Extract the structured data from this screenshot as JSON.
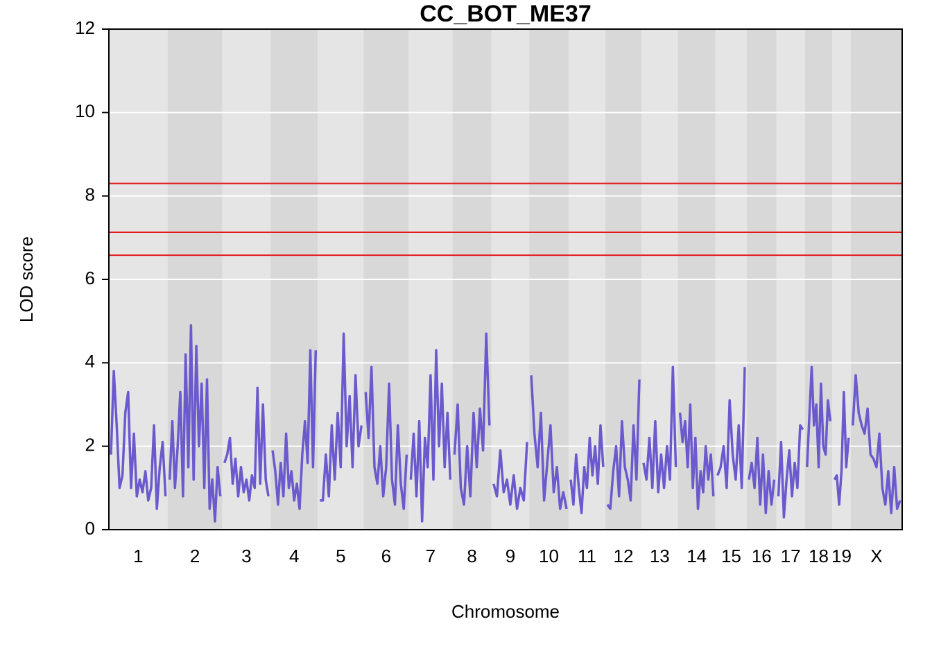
{
  "chart_data": {
    "type": "line",
    "title": "CC_BOT_ME37",
    "xlabel": "Chromosome",
    "ylabel": "LOD score",
    "color": "#6a5acd",
    "ylim": [
      0,
      12
    ],
    "yticks": [
      0,
      2,
      4,
      6,
      8,
      10,
      12
    ],
    "grid": true,
    "thresholds": {
      "values": [
        8.3,
        7.13,
        6.58
      ],
      "color": "#e41a1c"
    },
    "chromosomes": [
      {
        "label": "1",
        "length": 195,
        "values": [
          1.8,
          3.8,
          2.5,
          1.0,
          1.3,
          2.8,
          3.3,
          1.0,
          2.3,
          0.8,
          1.2,
          0.9,
          1.4,
          0.7,
          1.0,
          2.5,
          0.5,
          1.5,
          2.1,
          0.8
        ]
      },
      {
        "label": "2",
        "length": 182,
        "values": [
          1.2,
          2.6,
          1.0,
          2.0,
          3.3,
          0.8,
          4.2,
          1.5,
          4.9,
          1.2,
          4.4,
          2.0,
          3.5,
          1.0,
          3.6,
          0.5,
          1.2,
          0.2,
          1.5,
          0.8
        ]
      },
      {
        "label": "3",
        "length": 160,
        "values": [
          1.6,
          1.8,
          2.2,
          1.1,
          1.7,
          0.8,
          1.5,
          0.9,
          1.2,
          0.7,
          1.3,
          1.0,
          3.4,
          1.1,
          3.0,
          1.2,
          0.8
        ]
      },
      {
        "label": "4",
        "length": 157,
        "values": [
          1.9,
          1.4,
          0.6,
          1.6,
          0.8,
          2.3,
          1.0,
          1.4,
          0.7,
          1.1,
          0.5,
          1.8,
          2.6,
          1.6,
          4.3,
          1.5,
          4.3
        ]
      },
      {
        "label": "5",
        "length": 152,
        "values": [
          0.7,
          0.7,
          1.8,
          0.8,
          2.5,
          1.2,
          2.8,
          1.5,
          4.7,
          2.0,
          3.2,
          1.5,
          3.7,
          2.0,
          2.5
        ]
      },
      {
        "label": "6",
        "length": 150,
        "values": [
          3.3,
          2.2,
          3.9,
          1.5,
          1.1,
          2.0,
          0.8,
          1.5,
          3.5,
          1.2,
          0.6,
          2.5,
          1.1,
          0.5,
          1.8
        ]
      },
      {
        "label": "7",
        "length": 145,
        "values": [
          1.2,
          2.3,
          0.8,
          2.6,
          0.2,
          2.2,
          1.5,
          3.7,
          1.2,
          4.3,
          2.0,
          3.5,
          1.5,
          2.8,
          1.2
        ]
      },
      {
        "label": "8",
        "length": 130,
        "values": [
          1.8,
          3.0,
          1.0,
          0.6,
          2.0,
          0.8,
          2.8,
          1.5,
          2.9,
          1.9,
          4.7,
          2.5
        ]
      },
      {
        "label": "9",
        "length": 125,
        "values": [
          1.1,
          0.8,
          1.9,
          0.9,
          1.2,
          0.6,
          1.3,
          0.5,
          1.0,
          0.7,
          2.1
        ]
      },
      {
        "label": "10",
        "length": 131,
        "values": [
          3.7,
          2.3,
          1.5,
          2.8,
          0.7,
          1.6,
          2.5,
          0.9,
          1.5,
          0.5,
          0.9,
          0.5
        ]
      },
      {
        "label": "11",
        "length": 122,
        "values": [
          1.2,
          0.6,
          1.8,
          1.0,
          0.4,
          1.5,
          1.0,
          2.2,
          1.3,
          2.0,
          1.1,
          2.5,
          1.5
        ]
      },
      {
        "label": "12",
        "length": 120,
        "values": [
          0.6,
          0.5,
          1.4,
          2.0,
          0.8,
          2.6,
          1.5,
          1.2,
          0.7,
          2.5,
          1.2,
          3.6
        ]
      },
      {
        "label": "13",
        "length": 121,
        "values": [
          1.6,
          1.2,
          2.2,
          1.0,
          2.6,
          0.9,
          1.8,
          1.0,
          2.0,
          1.2,
          3.9,
          1.5
        ]
      },
      {
        "label": "14",
        "length": 125,
        "values": [
          2.8,
          2.1,
          2.6,
          1.5,
          3.0,
          1.0,
          2.2,
          0.5,
          1.4,
          0.9,
          2.0,
          1.2,
          1.8,
          0.8
        ]
      },
      {
        "label": "15",
        "length": 104,
        "values": [
          1.3,
          1.5,
          2.0,
          1.0,
          3.1,
          1.8,
          1.2,
          2.5,
          1.0,
          3.9
        ]
      },
      {
        "label": "16",
        "length": 98,
        "values": [
          1.2,
          1.6,
          1.0,
          2.2,
          0.6,
          1.8,
          0.4,
          1.4,
          0.6,
          1.2
        ]
      },
      {
        "label": "17",
        "length": 95,
        "values": [
          0.8,
          2.1,
          0.3,
          1.2,
          1.9,
          0.8,
          1.6,
          1.0,
          2.5,
          2.4
        ]
      },
      {
        "label": "18",
        "length": 91,
        "values": [
          1.5,
          2.7,
          3.9,
          2.5,
          3.0,
          1.5,
          3.5,
          2.0,
          1.8,
          3.1,
          2.6
        ]
      },
      {
        "label": "19",
        "length": 61,
        "values": [
          1.2,
          1.3,
          0.6,
          1.4,
          3.3,
          1.5,
          2.2
        ]
      },
      {
        "label": "X",
        "length": 171,
        "values": [
          2.5,
          3.7,
          2.8,
          2.5,
          2.3,
          2.9,
          1.8,
          1.7,
          1.5,
          2.3,
          1.0,
          0.6,
          1.4,
          0.4,
          1.5,
          0.5,
          0.7
        ]
      }
    ]
  }
}
